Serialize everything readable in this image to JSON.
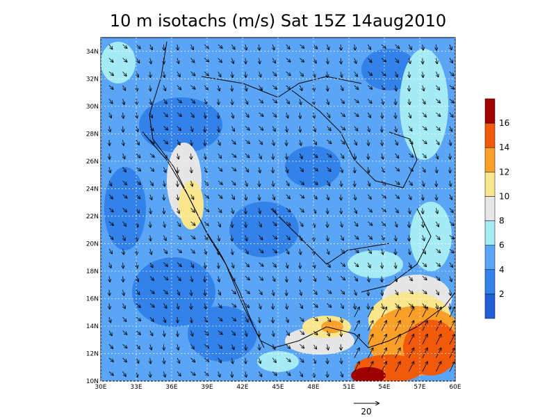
{
  "title": "10 m isotachs (m/s) Sat 15Z 14aug2010",
  "lon_labels": [
    "30E",
    "33E",
    "36E",
    "39E",
    "42E",
    "45E",
    "48E",
    "51E",
    "54E",
    "57E",
    "60E"
  ],
  "lat_labels": [
    "10N",
    "12N",
    "14N",
    "16N",
    "18N",
    "20N",
    "22N",
    "24N",
    "26N",
    "28N",
    "30N",
    "32N",
    "34N"
  ],
  "colorbar": {
    "levels": [
      2,
      4,
      6,
      8,
      10,
      12,
      14,
      16
    ],
    "colors": [
      "#1e5fd8",
      "#3282ea",
      "#5aa5f5",
      "#a5ebf5",
      "#e6e6e6",
      "#fae68c",
      "#faa028",
      "#f05a0a",
      "#a00000"
    ]
  },
  "reference_vector": {
    "label": "20"
  }
}
